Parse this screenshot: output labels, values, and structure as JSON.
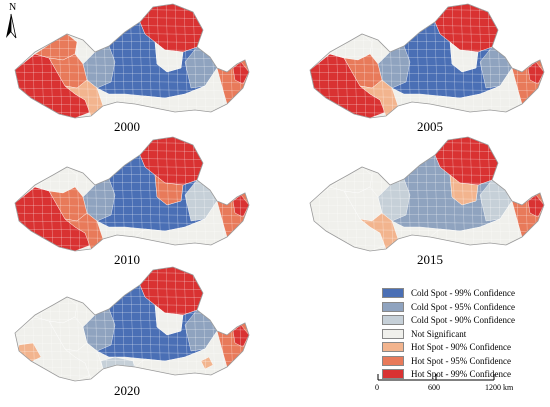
{
  "north": {
    "letter": "N"
  },
  "panels": [
    {
      "year": "2000",
      "pattern": "p2000"
    },
    {
      "year": "2005",
      "pattern": "p2005"
    },
    {
      "year": "2010",
      "pattern": "p2010"
    },
    {
      "year": "2015",
      "pattern": "p2015"
    },
    {
      "year": "2020",
      "pattern": "p2020"
    }
  ],
  "legend": [
    {
      "label": "Cold Spot - 99% Confidence",
      "color": "#4a6fb5"
    },
    {
      "label": "Cold Spot - 95% Confidence",
      "color": "#8fa3bf"
    },
    {
      "label": "Cold Spot - 90% Confidence",
      "color": "#c6d0d8"
    },
    {
      "label": "Not Significant",
      "color": "#f0f0ec"
    },
    {
      "label": "Hot Spot - 90% Confidence",
      "color": "#f2b48e"
    },
    {
      "label": "Hot Spot - 95% Confidence",
      "color": "#e87a5a"
    },
    {
      "label": "Hot Spot - 99% Confidence",
      "color": "#d93232"
    }
  ],
  "scale": {
    "ticks": [
      "0",
      "600",
      "1200 km"
    ]
  }
}
